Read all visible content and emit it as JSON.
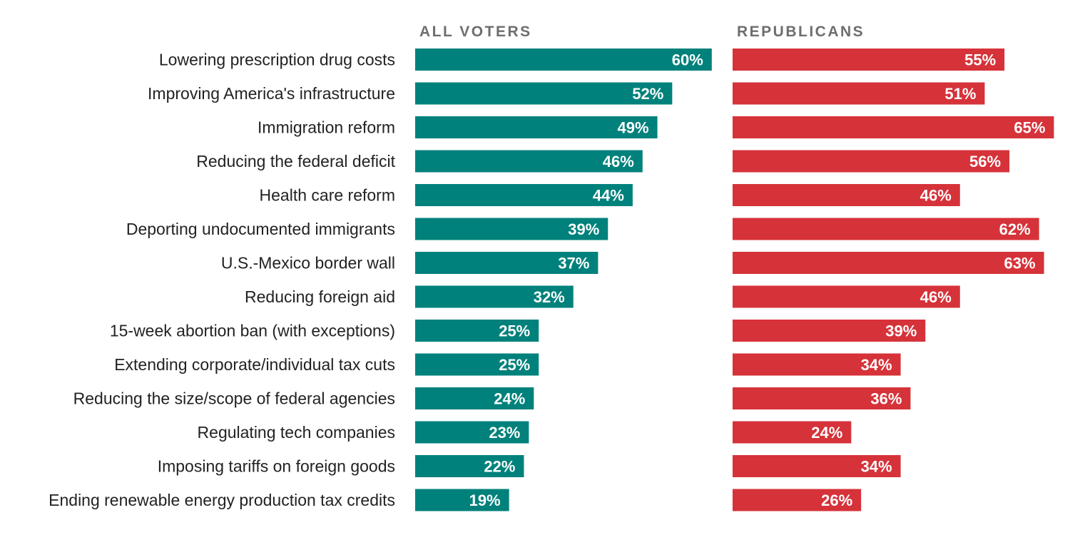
{
  "colors": {
    "all_voters": "#00817b",
    "republicans": "#d63239"
  },
  "chart_data": {
    "type": "bar",
    "orientation": "horizontal",
    "value_unit": "%",
    "categories": [
      "Lowering prescription drug costs",
      "Improving America's infrastructure",
      "Immigration reform",
      "Reducing the federal deficit",
      "Health care reform",
      "Deporting undocumented immigrants",
      "U.S.-Mexico border wall",
      "Reducing foreign aid",
      "15-week abortion ban (with exceptions)",
      "Extending corporate/individual tax cuts",
      "Reducing the size/scope of federal agencies",
      "Regulating tech companies",
      "Imposing tariffs on foreign goods",
      "Ending renewable energy production tax credits"
    ],
    "series": [
      {
        "name": "ALL VOTERS",
        "color": "#00817b",
        "values": [
          60,
          52,
          49,
          46,
          44,
          39,
          37,
          32,
          25,
          25,
          24,
          23,
          22,
          19
        ]
      },
      {
        "name": "REPUBLICANS",
        "color": "#d63239",
        "values": [
          55,
          51,
          65,
          56,
          46,
          62,
          63,
          46,
          39,
          34,
          36,
          24,
          34,
          26
        ]
      }
    ],
    "xlim": [
      0,
      65
    ],
    "grid": false,
    "legend": "panel titles above each column"
  }
}
